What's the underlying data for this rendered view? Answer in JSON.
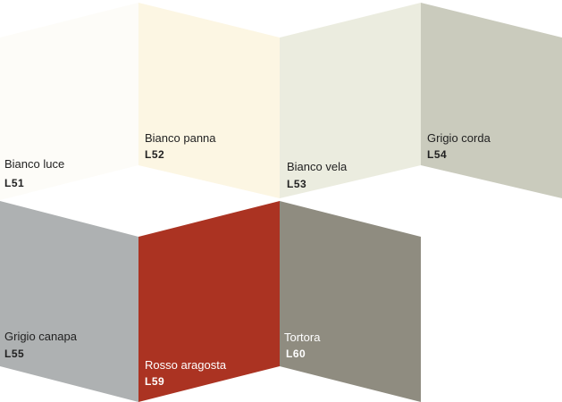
{
  "swatches": [
    {
      "name": "Bianco luce",
      "code": "L51",
      "color": "#fdfcf8"
    },
    {
      "name": "Bianco panna",
      "code": "L52",
      "color": "#fcf6e3"
    },
    {
      "name": "Bianco vela",
      "code": "L53",
      "color": "#ebecdf"
    },
    {
      "name": "Grigio corda",
      "code": "L54",
      "color": "#cacbbd"
    },
    {
      "name": "Grigio canapa",
      "code": "L55",
      "color": "#aeb1b2"
    },
    {
      "name": "Rosso aragosta",
      "code": "L59",
      "color": "#ab3322"
    },
    {
      "name": "Tortora",
      "code": "L60",
      "color": "#8f8c80"
    }
  ]
}
